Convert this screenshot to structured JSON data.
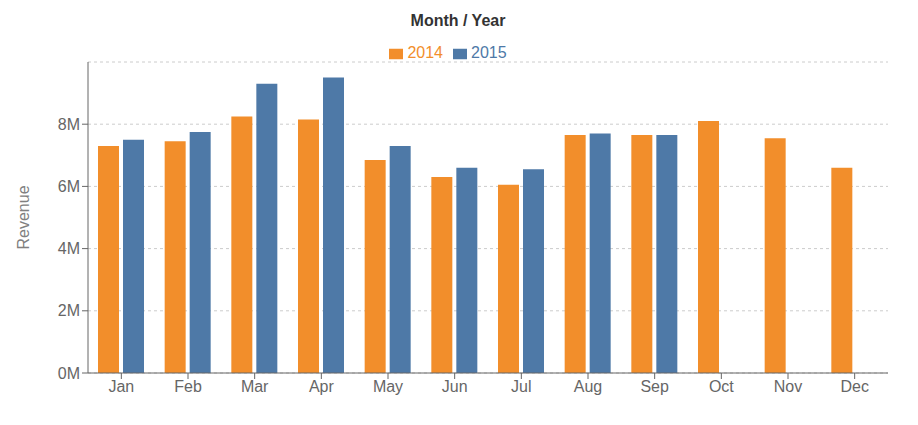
{
  "chart_data": {
    "type": "bar",
    "title": "Month / Year",
    "y_label": "Revenue",
    "categories": [
      "Jan",
      "Feb",
      "Mar",
      "Apr",
      "May",
      "Jun",
      "Jul",
      "Aug",
      "Sep",
      "Oct",
      "Nov",
      "Dec"
    ],
    "series": [
      {
        "name": "2014",
        "color": "#F28E2B",
        "values": [
          7.3,
          7.45,
          8.25,
          8.15,
          6.85,
          6.3,
          6.05,
          7.65,
          7.65,
          8.1,
          7.55,
          6.6
        ]
      },
      {
        "name": "2015",
        "color": "#4E79A7",
        "values": [
          7.5,
          7.75,
          9.3,
          9.5,
          7.3,
          6.6,
          6.55,
          7.7,
          7.65,
          null,
          null,
          null
        ]
      }
    ],
    "ylim": [
      0,
      10
    ],
    "yticks": [
      {
        "value": 0,
        "label": "0M"
      },
      {
        "value": 2,
        "label": "2M"
      },
      {
        "value": 4,
        "label": "4M"
      },
      {
        "value": 6,
        "label": "6M"
      },
      {
        "value": 8,
        "label": "8M"
      }
    ],
    "grid": true,
    "legend": "top"
  }
}
